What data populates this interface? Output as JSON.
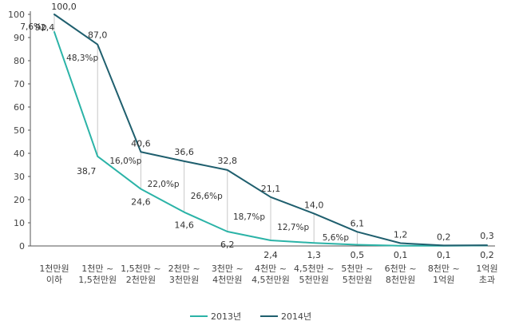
{
  "chart_data": {
    "type": "line",
    "categories": [
      [
        "1천만원",
        "이하"
      ],
      [
        "1천만 ~",
        "1,5천만원"
      ],
      [
        "1,5천만 ~",
        "2천만원"
      ],
      [
        "2천만 ~",
        "3천만원"
      ],
      [
        "3천만 ~",
        "4천만원"
      ],
      [
        "4천만 ~",
        "4,5천만원"
      ],
      [
        "4,5천만 ~",
        "5천만원"
      ],
      [
        "5천만 ~",
        "5천만원"
      ],
      [
        "6천만 ~",
        "8천만원"
      ],
      [
        "8천만 ~",
        "1억원"
      ],
      [
        "1억원",
        "초과"
      ]
    ],
    "series": [
      {
        "name": "2013년",
        "color": "#2bb3a7",
        "values": [
          92.4,
          38.7,
          24.6,
          14.6,
          6.2,
          2.4,
          1.3,
          0.5,
          0.1,
          0.1,
          0.2
        ],
        "labels": [
          "92,4",
          "38,7",
          "24,6",
          "14,6",
          "6,2",
          "2,4",
          "1,3",
          "0,5",
          "0,1",
          "0,1",
          "0,2"
        ]
      },
      {
        "name": "2014년",
        "color": "#1f5f6e",
        "values": [
          100.0,
          87.0,
          40.6,
          36.6,
          32.8,
          21.1,
          14.0,
          6.1,
          1.2,
          0.2,
          0.3
        ],
        "labels": [
          "100,0",
          "87,0",
          "40,6",
          "36,6",
          "32,8",
          "21,1",
          "14,0",
          "6,1",
          "1,2",
          "0,2",
          "0,3"
        ]
      }
    ],
    "differences": [
      "7,6%p",
      "48,3%p",
      "16,0%p",
      "22,0%p",
      "26,6%p",
      "18,7%p",
      "12,7%p",
      "5,6%p"
    ],
    "y_ticks": [
      0,
      10,
      20,
      30,
      40,
      50,
      60,
      70,
      80,
      90,
      100
    ],
    "ylim": [
      0,
      100
    ],
    "grid": false,
    "legend_position": "bottom-center"
  }
}
